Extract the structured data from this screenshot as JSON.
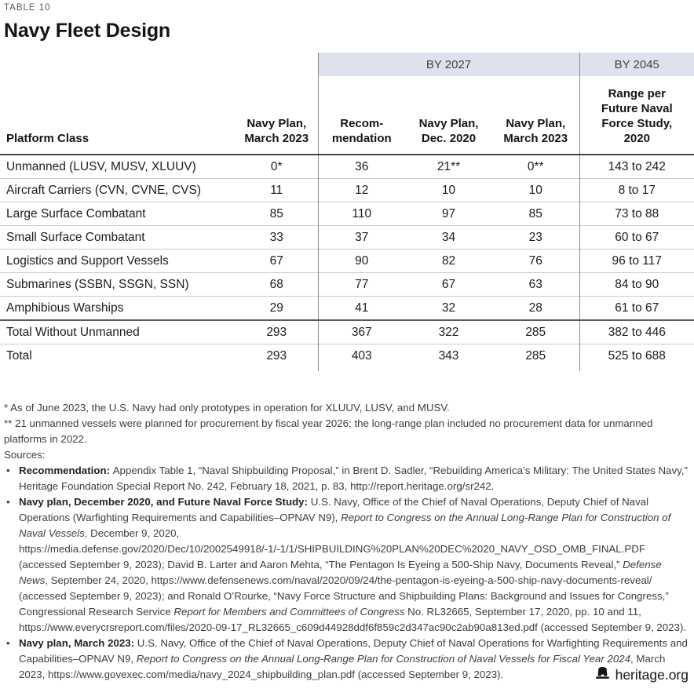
{
  "page": {
    "eyebrow": "TABLE 10",
    "title": "Navy Fleet Design",
    "footer_brand": "heritage.org"
  },
  "colors": {
    "band_bg": "#dee2ee",
    "header_rule": "#454545",
    "row_rule": "#cbcbcb",
    "vertical_rule": "#8a8a8a",
    "text": "#1a1a1a",
    "muted": "#58585a"
  },
  "table": {
    "group_headers": [
      {
        "label": "BY 2027",
        "span": 3
      },
      {
        "label": "BY 2045",
        "span": 1
      }
    ],
    "columns": [
      "Platform Class",
      "Navy Plan,\nMarch 2023",
      "Recom-\nmendation",
      "Navy Plan,\nDec. 2020",
      "Navy Plan,\nMarch 2023",
      "Range per\nFuture Naval\nForce Study,\n2020"
    ],
    "rows": [
      {
        "label": "Unmanned (LUSV, MUSV, XLUUV)",
        "values": [
          "0*",
          "36",
          "21**",
          "0**",
          "143 to 242"
        ]
      },
      {
        "label": "Aircraft Carriers (CVN, CVNE, CVS)",
        "values": [
          "11",
          "12",
          "10",
          "10",
          "8 to 17"
        ]
      },
      {
        "label": "Large Surface Combatant",
        "values": [
          "85",
          "110",
          "97",
          "85",
          "73 to 88"
        ]
      },
      {
        "label": "Small Surface Combatant",
        "values": [
          "33",
          "37",
          "34",
          "23",
          "60 to 67"
        ]
      },
      {
        "label": "Logistics and Support Vessels",
        "values": [
          "67",
          "90",
          "82",
          "76",
          "96 to 117"
        ]
      },
      {
        "label": "Submarines (SSBN, SSGN, SSN)",
        "values": [
          "68",
          "77",
          "67",
          "63",
          "84 to 90"
        ]
      },
      {
        "label": "Amphibious Warships",
        "values": [
          "29",
          "41",
          "32",
          "28",
          "61 to 67"
        ]
      }
    ],
    "total_rows": [
      {
        "label": "Total Without Unmanned",
        "values": [
          "293",
          "367",
          "322",
          "285",
          "382 to 446"
        ]
      },
      {
        "label": "Total",
        "values": [
          "293",
          "403",
          "343",
          "285",
          "525 to 688"
        ]
      }
    ]
  },
  "footnotes": [
    "* As of June 2023, the U.S. Navy had only prototypes in operation for XLUUV, LUSV, and MUSV.",
    "** 21 unmanned vessels were planned for procurement by fiscal year 2026; the long-range plan included no procurement data for unmanned platforms in 2022."
  ],
  "sources": {
    "label": "Sources:",
    "items": [
      {
        "segments": [
          {
            "t": "Recommendation: ",
            "s": "b"
          },
          {
            "t": "Appendix Table 1, “Naval Shipbuilding Proposal,” in Brent D. Sadler, “Rebuilding America’s Military: The United States Navy,” Heritage Foundation Special Report No. 242, February 18, 2021, p. 83, http://report.heritage.org/sr242.",
            "s": "n"
          }
        ]
      },
      {
        "segments": [
          {
            "t": "Navy plan, December 2020, and Future Naval Force Study: ",
            "s": "b"
          },
          {
            "t": "U.S. Navy, Office of the Chief of Naval Operations, Deputy Chief of Naval Operations (Warfighting Requirements and Capabilities–OPNAV N9), ",
            "s": "n"
          },
          {
            "t": "Report to Congress on the Annual Long-Range Plan for Construction of Naval Vessels",
            "s": "i"
          },
          {
            "t": ", December 9, 2020, https://media.defense.gov/2020/Dec/10/2002549918/-1/-1/1/SHIPBUILDING%20PLAN%20DEC%2020_NAVY_OSD_OMB_FINAL.PDF (accessed September 9, 2023); David B. Larter and Aaron Mehta, “The Pentagon Is Eyeing a 500-Ship Navy, Documents Reveal,” ",
            "s": "n"
          },
          {
            "t": "Defense News",
            "s": "i"
          },
          {
            "t": ", September 24, 2020, https://www.defensenews.com/naval/2020/09/24/the-pentagon-is-eyeing-a-500-ship-navy-documents-reveal/ (accessed September 9, 2023); and Ronald O’Rourke, “Navy Force Structure and Shipbuilding Plans: Background and Issues for Congress,” Congressional Research Service ",
            "s": "n"
          },
          {
            "t": "Report for Members and Committees of Congress",
            "s": "i"
          },
          {
            "t": " No. RL32665, September 17, 2020, pp. 10 and 11, https://www.everycrsreport.com/files/2020-09-17_RL32665_c609d44928ddf6f859c2d347ac90c2ab90a813ed.pdf (accessed September 9, 2023).",
            "s": "n"
          }
        ]
      },
      {
        "segments": [
          {
            "t": "Navy plan, March 2023: ",
            "s": "b"
          },
          {
            "t": "U.S. Navy, Office of the Chief of Naval Operations, Deputy Chief of Naval Operations for Warfighting Requirements and Capabilities–OPNAV N9, ",
            "s": "n"
          },
          {
            "t": "Report to Congress on the Annual Long-Range Plan for Construction of Naval Vessels for Fiscal Year 2024",
            "s": "i"
          },
          {
            "t": ", March 2023, https://www.govexec.com/media/navy_2024_shipbuilding_plan.pdf (accessed September 9, 2023).",
            "s": "n"
          }
        ]
      }
    ]
  }
}
